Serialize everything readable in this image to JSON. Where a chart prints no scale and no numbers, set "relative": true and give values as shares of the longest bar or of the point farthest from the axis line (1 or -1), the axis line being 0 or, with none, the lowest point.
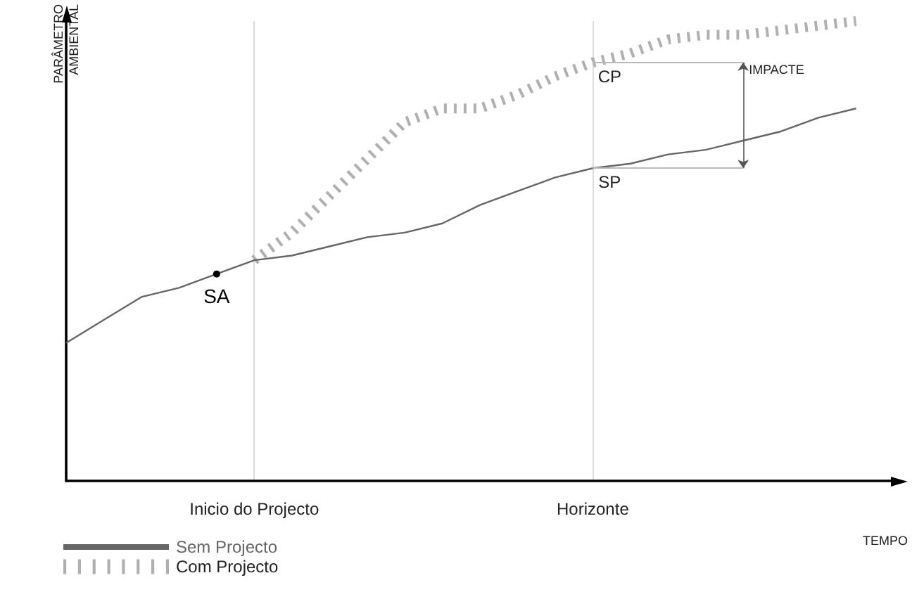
{
  "chart_data": {
    "type": "line",
    "relative": true,
    "xlabel": "TEMPO",
    "ylabel": "PARÂMETRO AMBIENTAL",
    "categories": [
      null,
      null,
      null,
      null,
      null,
      "Inicio do Projecto",
      null,
      null,
      null,
      null,
      null,
      null,
      null,
      null,
      "Horizonte",
      null,
      null,
      null,
      null,
      null,
      null,
      null,
      null
    ],
    "grid": "x",
    "legend": "bottom left",
    "series": [
      {
        "name": "Sem Projecto",
        "color": "#666666",
        "line_style": "solid",
        "values": [
          0.3,
          0.35,
          0.4,
          0.42,
          0.45,
          0.48,
          0.49,
          0.51,
          0.53,
          0.54,
          0.56,
          0.6,
          0.63,
          0.66,
          0.68,
          0.69,
          0.71,
          0.72,
          0.74,
          0.76,
          0.79,
          0.81,
          null
        ]
      },
      {
        "name": "Com Projecto",
        "color": "#b0b0b0",
        "line_style": "dashed",
        "values": [
          null,
          null,
          null,
          null,
          null,
          0.48,
          0.54,
          0.62,
          0.7,
          0.78,
          0.81,
          0.81,
          0.84,
          0.88,
          0.91,
          0.93,
          0.96,
          0.97,
          0.97,
          0.98,
          0.99,
          1.0,
          null
        ]
      }
    ],
    "annotations": [
      {
        "text": "SA",
        "y": 0.45
      },
      {
        "text": "CP",
        "x": "Horizonte",
        "y": 0.91
      },
      {
        "text": "SP",
        "x": "Horizonte",
        "y": 0.68
      },
      "IMPACTE"
    ]
  }
}
